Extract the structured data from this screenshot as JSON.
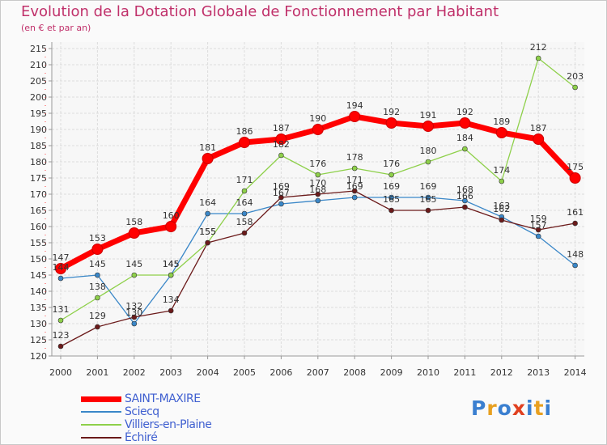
{
  "header": {
    "title": "Evolution de la Dotation Globale de Fonctionnement par Habitant",
    "subtitle": "(en € et par an)"
  },
  "chart_data": {
    "type": "line",
    "title": "Evolution de la Dotation Globale de Fonctionnement par Habitant",
    "subtitle": "(en € et par an)",
    "xlabel": "",
    "ylabel": "",
    "x": [
      "2000",
      "2001",
      "2002",
      "2003",
      "2004",
      "2005",
      "2006",
      "2007",
      "2008",
      "2009",
      "2010",
      "2011",
      "2012",
      "2013",
      "2014"
    ],
    "ylim": [
      120,
      215
    ],
    "yticks": [
      120,
      125,
      130,
      135,
      140,
      145,
      150,
      155,
      160,
      165,
      170,
      175,
      180,
      185,
      190,
      195,
      200,
      205,
      210,
      215
    ],
    "grid": true,
    "legend_position": "bottom-left",
    "series": [
      {
        "name": "SAINT-MAXIRE",
        "color": "#ff0000",
        "values": [
          147,
          153,
          158,
          160,
          181,
          186,
          187,
          190,
          194,
          192,
          191,
          192,
          189,
          187,
          175
        ]
      },
      {
        "name": "Sciecq",
        "color": "#3a87c8",
        "values": [
          144,
          145,
          130,
          145,
          164,
          164,
          167,
          168,
          169,
          169,
          169,
          168,
          163,
          157,
          148
        ]
      },
      {
        "name": "Villiers-en-Plaine",
        "color": "#8ed04a",
        "values": [
          131,
          138,
          145,
          145,
          155,
          171,
          182,
          176,
          178,
          176,
          180,
          184,
          174,
          212,
          203
        ]
      },
      {
        "name": "Échiré",
        "color": "#6b1a1a",
        "values": [
          123,
          129,
          132,
          134,
          155,
          158,
          169,
          170,
          171,
          165,
          165,
          166,
          162,
          159,
          161
        ]
      }
    ]
  },
  "logo": {
    "letters": [
      "P",
      "r",
      "o",
      "x",
      "i",
      "t",
      "i"
    ],
    "colors": [
      "#3a7fd0",
      "#e8a020",
      "#3a7fd0",
      "#e04020",
      "#3a7fd0",
      "#e8a020",
      "#3a7fd0"
    ]
  }
}
